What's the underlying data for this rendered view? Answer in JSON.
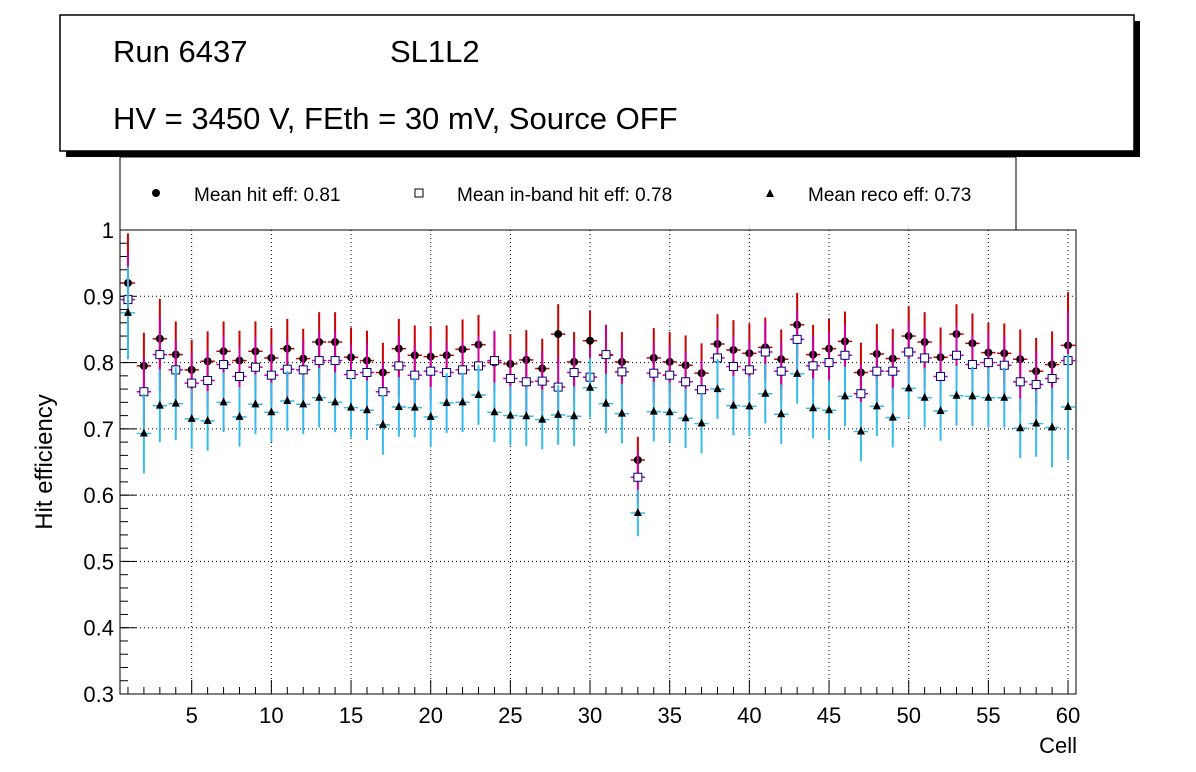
{
  "chart_data": {
    "type": "scatter",
    "header": {
      "run": "Run 6437",
      "layer": "SL1L2",
      "conditions": "HV = 3450 V, FEth = 30 mV, Source OFF"
    },
    "legend": [
      {
        "marker": "filled-circle",
        "label": "Mean hit  eff: 0.81"
      },
      {
        "marker": "open-square",
        "label": "Mean in-band hit eff: 0.78"
      },
      {
        "marker": "filled-triangle",
        "label": "Mean reco eff: 0.73"
      }
    ],
    "xlabel": "Cell",
    "ylabel": "Hit efficiency",
    "xlim": [
      0.5,
      60.5
    ],
    "ylim": [
      0.3,
      1.0
    ],
    "x_ticks": [
      5,
      10,
      15,
      20,
      25,
      30,
      35,
      40,
      45,
      50,
      55,
      60
    ],
    "y_ticks": [
      0.3,
      0.4,
      0.5,
      0.6,
      0.7,
      0.8,
      0.9,
      1.0
    ],
    "y_tick_labels": [
      "0.3",
      "0.4",
      "0.5",
      "0.6",
      "0.7",
      "0.8",
      "0.9",
      "1"
    ],
    "x_tick_labels": [
      "5",
      "10",
      "15",
      "20",
      "25",
      "30",
      "35",
      "40",
      "45",
      "50",
      "55",
      "60"
    ],
    "grid": true,
    "x": [
      1,
      2,
      3,
      4,
      5,
      6,
      7,
      8,
      9,
      10,
      11,
      12,
      13,
      14,
      15,
      16,
      17,
      18,
      19,
      20,
      21,
      22,
      23,
      24,
      25,
      26,
      27,
      28,
      29,
      30,
      31,
      32,
      33,
      34,
      35,
      36,
      37,
      38,
      39,
      40,
      41,
      42,
      43,
      44,
      45,
      46,
      47,
      48,
      49,
      50,
      51,
      52,
      53,
      54,
      55,
      56,
      57,
      58,
      59,
      60
    ],
    "series": [
      {
        "name": "Mean hit eff",
        "marker": "filled-circle",
        "color": "#000000",
        "error_color": "#cc0000",
        "values": [
          0.92,
          0.795,
          0.836,
          0.812,
          0.789,
          0.802,
          0.817,
          0.803,
          0.817,
          0.807,
          0.821,
          0.806,
          0.831,
          0.831,
          0.808,
          0.803,
          0.785,
          0.821,
          0.811,
          0.809,
          0.811,
          0.82,
          0.827,
          0.8,
          0.798,
          0.804,
          0.791,
          0.843,
          0.801,
          0.833,
          0.811,
          0.801,
          0.653,
          0.807,
          0.801,
          0.796,
          0.784,
          0.828,
          0.819,
          0.814,
          0.823,
          0.805,
          0.857,
          0.812,
          0.821,
          0.832,
          0.785,
          0.813,
          0.806,
          0.84,
          0.831,
          0.808,
          0.843,
          0.829,
          0.815,
          0.814,
          0.805,
          0.787,
          0.797,
          0.826
        ],
        "errors": [
          0.075,
          0.05,
          0.06,
          0.05,
          0.045,
          0.045,
          0.045,
          0.045,
          0.045,
          0.045,
          0.045,
          0.045,
          0.045,
          0.045,
          0.045,
          0.045,
          0.045,
          0.045,
          0.045,
          0.045,
          0.045,
          0.045,
          0.045,
          0.045,
          0.045,
          0.045,
          0.045,
          0.045,
          0.045,
          0.045,
          0.045,
          0.045,
          0.035,
          0.045,
          0.045,
          0.045,
          0.045,
          0.045,
          0.045,
          0.045,
          0.045,
          0.045,
          0.048,
          0.045,
          0.045,
          0.045,
          0.045,
          0.045,
          0.045,
          0.045,
          0.045,
          0.045,
          0.045,
          0.045,
          0.045,
          0.045,
          0.045,
          0.05,
          0.05,
          0.08
        ]
      },
      {
        "name": "Mean in-band hit eff",
        "marker": "open-square",
        "color": "#000080",
        "error_color": "#cc0099",
        "values": [
          0.895,
          0.756,
          0.812,
          0.789,
          0.769,
          0.773,
          0.797,
          0.779,
          0.793,
          0.781,
          0.79,
          0.789,
          0.803,
          0.803,
          0.782,
          0.785,
          0.756,
          0.795,
          0.781,
          0.787,
          0.785,
          0.789,
          0.795,
          0.803,
          0.776,
          0.771,
          0.772,
          0.763,
          0.785,
          0.778,
          0.812,
          0.786,
          0.627,
          0.784,
          0.781,
          0.771,
          0.759,
          0.807,
          0.794,
          0.789,
          0.816,
          0.787,
          0.835,
          0.795,
          0.8,
          0.811,
          0.753,
          0.787,
          0.787,
          0.816,
          0.807,
          0.779,
          0.811,
          0.797,
          0.8,
          0.796,
          0.771,
          0.767,
          0.776,
          0.803
        ],
        "errors": [
          0.07,
          0.05,
          0.055,
          0.045,
          0.045,
          0.045,
          0.045,
          0.045,
          0.045,
          0.045,
          0.045,
          0.045,
          0.045,
          0.045,
          0.045,
          0.045,
          0.045,
          0.045,
          0.045,
          0.045,
          0.045,
          0.045,
          0.045,
          0.045,
          0.045,
          0.045,
          0.045,
          0.045,
          0.045,
          0.045,
          0.045,
          0.045,
          0.04,
          0.045,
          0.045,
          0.045,
          0.045,
          0.045,
          0.045,
          0.045,
          0.045,
          0.045,
          0.045,
          0.045,
          0.045,
          0.045,
          0.045,
          0.045,
          0.045,
          0.045,
          0.045,
          0.045,
          0.045,
          0.045,
          0.045,
          0.045,
          0.045,
          0.05,
          0.05,
          0.075
        ]
      },
      {
        "name": "Mean reco eff",
        "marker": "filled-triangle",
        "color": "#000000",
        "error_color": "#33bbee",
        "values": [
          0.875,
          0.693,
          0.735,
          0.738,
          0.715,
          0.712,
          0.74,
          0.718,
          0.737,
          0.725,
          0.742,
          0.737,
          0.747,
          0.74,
          0.732,
          0.728,
          0.706,
          0.733,
          0.732,
          0.718,
          0.739,
          0.74,
          0.751,
          0.725,
          0.72,
          0.719,
          0.714,
          0.721,
          0.719,
          0.762,
          0.738,
          0.723,
          0.573,
          0.726,
          0.725,
          0.716,
          0.708,
          0.76,
          0.735,
          0.734,
          0.753,
          0.722,
          0.783,
          0.731,
          0.728,
          0.749,
          0.696,
          0.734,
          0.717,
          0.761,
          0.747,
          0.727,
          0.75,
          0.749,
          0.747,
          0.747,
          0.701,
          0.708,
          0.702,
          0.733
        ],
        "errors": [
          0.07,
          0.06,
          0.055,
          0.055,
          0.045,
          0.045,
          0.045,
          0.045,
          0.045,
          0.045,
          0.045,
          0.045,
          0.045,
          0.045,
          0.045,
          0.045,
          0.045,
          0.045,
          0.045,
          0.045,
          0.045,
          0.045,
          0.045,
          0.045,
          0.045,
          0.045,
          0.045,
          0.045,
          0.045,
          0.045,
          0.045,
          0.045,
          0.035,
          0.045,
          0.045,
          0.045,
          0.045,
          0.045,
          0.045,
          0.045,
          0.045,
          0.045,
          0.045,
          0.045,
          0.045,
          0.045,
          0.045,
          0.045,
          0.045,
          0.045,
          0.045,
          0.045,
          0.045,
          0.045,
          0.045,
          0.045,
          0.045,
          0.05,
          0.06,
          0.08
        ]
      }
    ]
  }
}
